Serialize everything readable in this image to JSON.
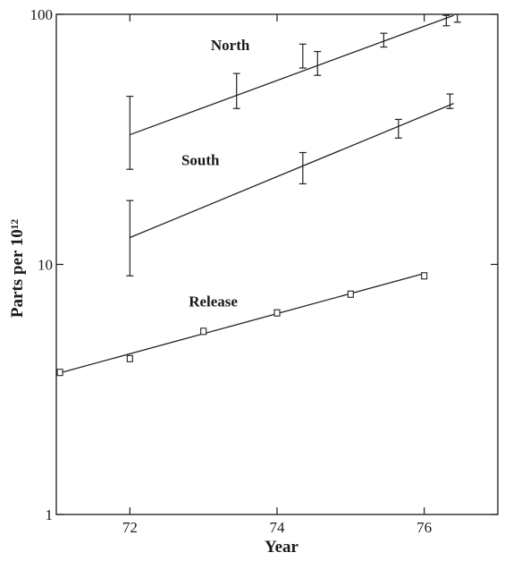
{
  "chart_data": {
    "type": "scatter",
    "xlabel": "Year",
    "ylabel": "Parts per 10¹²",
    "xlim": [
      71,
      77
    ],
    "ylim": [
      1,
      100
    ],
    "yscale": "log",
    "x_ticks": [
      {
        "value": 72,
        "label": "72"
      },
      {
        "value": 74,
        "label": "74"
      },
      {
        "value": 76,
        "label": "76"
      }
    ],
    "y_ticks": [
      {
        "value": 1,
        "label": "1"
      },
      {
        "value": 10,
        "label": "10"
      },
      {
        "value": 100,
        "label": "100"
      }
    ],
    "grid": false,
    "series": [
      {
        "name": "North",
        "style": "error-bars",
        "points": [
          {
            "x": 72.0,
            "y": 33,
            "low": 24,
            "high": 47
          },
          {
            "x": 73.45,
            "y": 49,
            "low": 42,
            "high": 58
          },
          {
            "x": 74.35,
            "y": 68,
            "low": 61,
            "high": 76
          },
          {
            "x": 74.55,
            "y": 63,
            "low": 57,
            "high": 71
          },
          {
            "x": 75.45,
            "y": 79,
            "low": 74,
            "high": 84
          },
          {
            "x": 76.3,
            "y": 95,
            "low": 90,
            "high": 99
          },
          {
            "x": 76.45,
            "y": 97,
            "low": 93,
            "high": 100
          }
        ],
        "fit": {
          "x": [
            72.0,
            76.4
          ],
          "y": [
            33,
            99
          ]
        }
      },
      {
        "name": "South",
        "style": "error-bars",
        "points": [
          {
            "x": 72.0,
            "y": 12.5,
            "low": 9,
            "high": 18
          },
          {
            "x": 74.35,
            "y": 24,
            "low": 21,
            "high": 28
          },
          {
            "x": 75.65,
            "y": 35,
            "low": 32,
            "high": 38
          },
          {
            "x": 76.35,
            "y": 45,
            "low": 42,
            "high": 48
          }
        ],
        "fit": {
          "x": [
            72.0,
            76.4
          ],
          "y": [
            12.8,
            44
          ]
        }
      },
      {
        "name": "Release",
        "style": "square-markers",
        "points": [
          {
            "x": 71.05,
            "y": 3.7
          },
          {
            "x": 72.0,
            "y": 4.2
          },
          {
            "x": 73.0,
            "y": 5.4
          },
          {
            "x": 74.0,
            "y": 6.4
          },
          {
            "x": 75.0,
            "y": 7.6
          },
          {
            "x": 76.0,
            "y": 9.0
          }
        ],
        "fit": {
          "x": [
            71.0,
            76.0
          ],
          "y": [
            3.65,
            9.2
          ]
        }
      }
    ]
  }
}
